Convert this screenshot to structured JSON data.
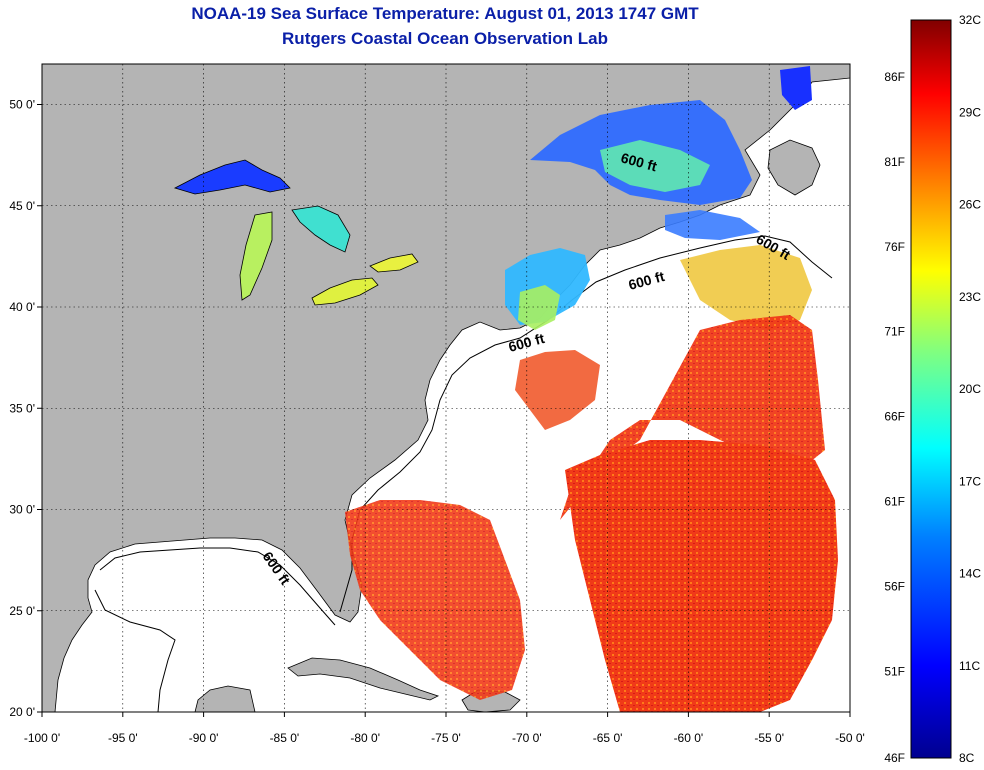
{
  "title": "NOAA-19 Sea Surface Temperature:  August 01, 2013 1747 GMT",
  "subtitle": "Rutgers Coastal Ocean Observation Lab",
  "map": {
    "lon_range": [
      -100,
      -50
    ],
    "lat_range": [
      20,
      52
    ],
    "lon_ticks": [
      {
        "value": -100,
        "label": "-100 0'"
      },
      {
        "value": -95,
        "label": "-95 0'"
      },
      {
        "value": -90,
        "label": "-90 0'"
      },
      {
        "value": -85,
        "label": "-85 0'"
      },
      {
        "value": -80,
        "label": "-80 0'"
      },
      {
        "value": -75,
        "label": "-75 0'"
      },
      {
        "value": -70,
        "label": "-70 0'"
      },
      {
        "value": -65,
        "label": "-65 0'"
      },
      {
        "value": -60,
        "label": "-60 0'"
      },
      {
        "value": -55,
        "label": "-55 0'"
      },
      {
        "value": -50,
        "label": "-50 0'"
      }
    ],
    "lat_ticks": [
      {
        "value": 20,
        "label": "20 0'"
      },
      {
        "value": 25,
        "label": "25 0'"
      },
      {
        "value": 30,
        "label": "30 0'"
      },
      {
        "value": 35,
        "label": "35 0'"
      },
      {
        "value": 40,
        "label": "40 0'"
      },
      {
        "value": 45,
        "label": "45 0'"
      },
      {
        "value": 50,
        "label": "50 0'"
      }
    ],
    "land_color": "#b4b4b4",
    "ocean_color": "#ffffff",
    "grid": "dotted",
    "isobath_labels": [
      "600 ft",
      "600 ft",
      "600 ft",
      "600 ft",
      "600 ft"
    ]
  },
  "colorbar": {
    "range_c": [
      8,
      32
    ],
    "celsius_labels": [
      "32C",
      "29C",
      "26C",
      "23C",
      "20C",
      "17C",
      "14C",
      "11C",
      "8C"
    ],
    "fahrenheit_labels": [
      "86F",
      "81F",
      "76F",
      "71F",
      "66F",
      "61F",
      "56F",
      "51F",
      "46F"
    ],
    "colors": [
      "#00008f",
      "#0000ff",
      "#0080ff",
      "#00ffff",
      "#80ff80",
      "#ffff00",
      "#ff8000",
      "#ff0000",
      "#800000"
    ]
  }
}
